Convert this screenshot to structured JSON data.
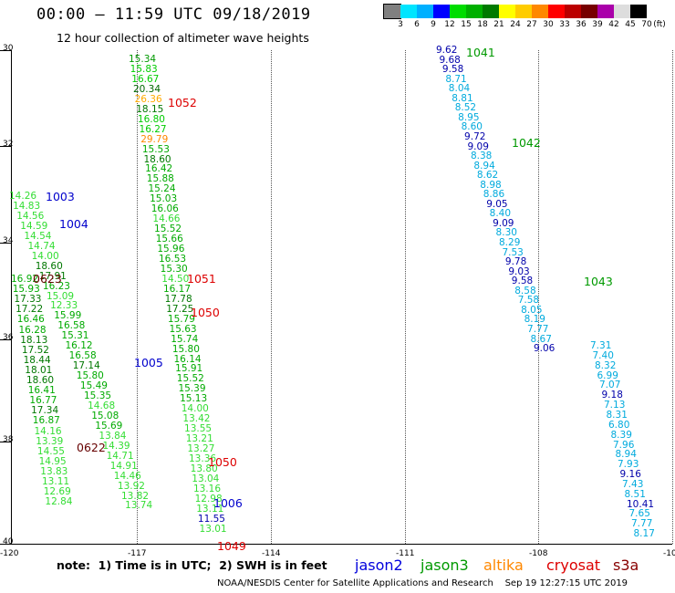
{
  "header": {
    "title": "00:00 – 11:59 UTC 09/18/2019",
    "subtitle": "12 hour collection of altimeter wave heights"
  },
  "colorbar": {
    "units": "(ft)",
    "cells": [
      {
        "color": "#808080",
        "label": "3"
      },
      {
        "color": "#00e5ff",
        "label": "6"
      },
      {
        "color": "#00b0ff",
        "label": "9"
      },
      {
        "color": "#0000ff",
        "label": "12"
      },
      {
        "color": "#00dd00",
        "label": "15"
      },
      {
        "color": "#00b000",
        "label": "18"
      },
      {
        "color": "#007a00",
        "label": "21"
      },
      {
        "color": "#ffff00",
        "label": "24"
      },
      {
        "color": "#ffcc00",
        "label": "27"
      },
      {
        "color": "#ff8800",
        "label": "30"
      },
      {
        "color": "#ff0000",
        "label": "33"
      },
      {
        "color": "#bb0000",
        "label": "36"
      },
      {
        "color": "#770000",
        "label": "39"
      },
      {
        "color": "#aa00aa",
        "label": "42"
      },
      {
        "color": "#dddddd",
        "label": "45"
      },
      {
        "color": "#000000",
        "label": "70"
      }
    ]
  },
  "axes": {
    "lat_labels": [
      "30",
      "32",
      "34",
      "36",
      "38",
      "40"
    ],
    "lon_labels": [
      "-120",
      "-117",
      "-114",
      "-111",
      "-108",
      "-105"
    ]
  },
  "passes": [
    {
      "label": "1041",
      "color": "#009900"
    },
    {
      "label": "1042",
      "color": "#009900"
    },
    {
      "label": "1043",
      "color": "#009900"
    },
    {
      "label": "1052",
      "color": "#dd0000"
    },
    {
      "label": "1051",
      "color": "#dd0000"
    },
    {
      "label": "1050",
      "color": "#dd0000"
    },
    {
      "label": "1050",
      "color": "#dd0000"
    },
    {
      "label": "1049",
      "color": "#dd0000"
    },
    {
      "label": "1003",
      "color": "#0000cc"
    },
    {
      "label": "1004",
      "color": "#0000cc"
    },
    {
      "label": "1005",
      "color": "#0000cc"
    },
    {
      "label": "1006",
      "color": "#0000cc"
    },
    {
      "label": "0623",
      "color": "#660000"
    },
    {
      "label": "0622",
      "color": "#660000"
    }
  ],
  "tracks": {
    "east_upper": [
      [
        "9.62",
        "#0000aa"
      ],
      [
        "9.68",
        "#0000aa"
      ],
      [
        "9.58",
        "#0000aa"
      ],
      [
        "8.71",
        "#00aadd"
      ],
      [
        "8.04",
        "#00aadd"
      ],
      [
        "8.81",
        "#00aadd"
      ],
      [
        "8.52",
        "#00aadd"
      ],
      [
        "8.95",
        "#00aadd"
      ],
      [
        "8.60",
        "#00aadd"
      ],
      [
        "9.72",
        "#0000aa"
      ],
      [
        "9.09",
        "#0000aa"
      ],
      [
        "8.38",
        "#00aadd"
      ],
      [
        "8.94",
        "#00aadd"
      ],
      [
        "8.62",
        "#00aadd"
      ],
      [
        "8.98",
        "#00aadd"
      ],
      [
        "8.86",
        "#00aadd"
      ],
      [
        "9.05",
        "#0000aa"
      ],
      [
        "8.40",
        "#00aadd"
      ],
      [
        "9.09",
        "#0000aa"
      ],
      [
        "8.30",
        "#00aadd"
      ],
      [
        "8.29",
        "#00aadd"
      ],
      [
        "7.53",
        "#00aadd"
      ],
      [
        "9.78",
        "#0000aa"
      ],
      [
        "9.03",
        "#0000aa"
      ],
      [
        "9.58",
        "#0000aa"
      ],
      [
        "8.58",
        "#00aadd"
      ],
      [
        "7.58",
        "#00aadd"
      ],
      [
        "8.05",
        "#00aadd"
      ],
      [
        "8.19",
        "#00aadd"
      ],
      [
        "7.77",
        "#00aadd"
      ],
      [
        "8.67",
        "#00aadd"
      ],
      [
        "9.06",
        "#0000aa"
      ]
    ],
    "east_lower": [
      [
        "7.31",
        "#00aadd"
      ],
      [
        "7.40",
        "#00aadd"
      ],
      [
        "8.32",
        "#00aadd"
      ],
      [
        "6.99",
        "#00aadd"
      ],
      [
        "7.07",
        "#00aadd"
      ],
      [
        "9.18",
        "#0000aa"
      ],
      [
        "7.13",
        "#00aadd"
      ],
      [
        "8.31",
        "#00aadd"
      ],
      [
        "6.80",
        "#00aadd"
      ],
      [
        "8.39",
        "#00aadd"
      ],
      [
        "7.96",
        "#00aadd"
      ],
      [
        "8.94",
        "#00aadd"
      ],
      [
        "7.93",
        "#00aadd"
      ],
      [
        "9.16",
        "#0000aa"
      ],
      [
        "7.43",
        "#00aadd"
      ],
      [
        "8.51",
        "#00aadd"
      ],
      [
        "10.41",
        "#0000aa"
      ],
      [
        "7.65",
        "#00aadd"
      ],
      [
        "7.77",
        "#00aadd"
      ],
      [
        "8.17",
        "#00aadd"
      ]
    ],
    "mid": [
      [
        "15.34",
        "#009900"
      ],
      [
        "15.83",
        "#00cc00"
      ],
      [
        "16.67",
        "#00cc00"
      ],
      [
        "20.34",
        "#006600"
      ],
      [
        "26.36",
        "#ffaa00"
      ],
      [
        "18.15",
        "#007700"
      ],
      [
        "16.80",
        "#00cc00"
      ],
      [
        "16.27",
        "#00cc00"
      ],
      [
        "29.79",
        "#ff8800"
      ],
      [
        "15.53",
        "#00aa00"
      ],
      [
        "18.60",
        "#007700"
      ],
      [
        "16.42",
        "#00aa00"
      ],
      [
        "15.88",
        "#00aa00"
      ],
      [
        "15.24",
        "#00aa00"
      ],
      [
        "15.03",
        "#00aa00"
      ],
      [
        "16.06",
        "#00aa00"
      ],
      [
        "14.66",
        "#33dd33"
      ],
      [
        "15.52",
        "#00aa00"
      ],
      [
        "15.66",
        "#00aa00"
      ],
      [
        "15.96",
        "#00aa00"
      ],
      [
        "16.53",
        "#00aa00"
      ],
      [
        "15.30",
        "#00aa00"
      ],
      [
        "14.50",
        "#33dd33"
      ],
      [
        "16.17",
        "#00aa00"
      ],
      [
        "17.78",
        "#007700"
      ],
      [
        "17.25",
        "#007700"
      ],
      [
        "15.79",
        "#00aa00"
      ],
      [
        "15.63",
        "#00aa00"
      ],
      [
        "15.74",
        "#00aa00"
      ],
      [
        "15.80",
        "#00aa00"
      ],
      [
        "16.14",
        "#00aa00"
      ],
      [
        "15.91",
        "#00aa00"
      ],
      [
        "15.52",
        "#00aa00"
      ],
      [
        "15.39",
        "#00aa00"
      ],
      [
        "15.13",
        "#00aa00"
      ],
      [
        "14.00",
        "#33dd33"
      ],
      [
        "13.42",
        "#33dd33"
      ],
      [
        "13.55",
        "#33dd33"
      ],
      [
        "13.21",
        "#33dd33"
      ],
      [
        "13.27",
        "#33dd33"
      ],
      [
        "13.36",
        "#33dd33"
      ],
      [
        "13.80",
        "#33dd33"
      ],
      [
        "13.04",
        "#33dd33"
      ],
      [
        "13.16",
        "#33dd33"
      ],
      [
        "12.98",
        "#33dd33"
      ],
      [
        "13.11",
        "#33dd33"
      ],
      [
        "11.55",
        "#0000aa"
      ],
      [
        "13.01",
        "#33dd33"
      ]
    ],
    "left_a": [
      [
        "14.26",
        "#33dd33"
      ],
      [
        "14.83",
        "#33dd33"
      ],
      [
        "14.56",
        "#33dd33"
      ],
      [
        "14.59",
        "#33dd33"
      ],
      [
        "14.54",
        "#33dd33"
      ],
      [
        "14.74",
        "#33dd33"
      ],
      [
        "14.00",
        "#33dd33"
      ],
      [
        "18.60",
        "#007700"
      ],
      [
        "17.91",
        "#007700"
      ],
      [
        "16.23",
        "#00aa00"
      ],
      [
        "15.09",
        "#33dd33"
      ],
      [
        "12.33",
        "#33dd33"
      ],
      [
        "15.99",
        "#00aa00"
      ],
      [
        "16.58",
        "#00aa00"
      ],
      [
        "15.31",
        "#00aa00"
      ],
      [
        "16.12",
        "#00aa00"
      ],
      [
        "16.58",
        "#00aa00"
      ],
      [
        "17.14",
        "#007700"
      ],
      [
        "15.80",
        "#00aa00"
      ],
      [
        "15.49",
        "#00aa00"
      ],
      [
        "15.35",
        "#00aa00"
      ],
      [
        "14.68",
        "#33dd33"
      ],
      [
        "15.08",
        "#00aa00"
      ],
      [
        "15.69",
        "#00aa00"
      ],
      [
        "13.84",
        "#33dd33"
      ],
      [
        "14.39",
        "#33dd33"
      ],
      [
        "14.71",
        "#33dd33"
      ],
      [
        "14.91",
        "#33dd33"
      ],
      [
        "14.46",
        "#33dd33"
      ],
      [
        "13.92",
        "#33dd33"
      ],
      [
        "13.82",
        "#33dd33"
      ],
      [
        "13.74",
        "#33dd33"
      ]
    ],
    "left_b": [
      [
        "16.92",
        "#00aa00"
      ],
      [
        "15.93",
        "#00aa00"
      ],
      [
        "17.33",
        "#007700"
      ],
      [
        "17.22",
        "#007700"
      ],
      [
        "16.46",
        "#00aa00"
      ],
      [
        "16.28",
        "#00aa00"
      ],
      [
        "18.13",
        "#007700"
      ],
      [
        "17.52",
        "#007700"
      ],
      [
        "18.44",
        "#007700"
      ],
      [
        "18.01",
        "#007700"
      ],
      [
        "18.60",
        "#007700"
      ],
      [
        "16.41",
        "#00aa00"
      ],
      [
        "16.77",
        "#00aa00"
      ],
      [
        "17.34",
        "#007700"
      ],
      [
        "16.87",
        "#00aa00"
      ],
      [
        "14.16",
        "#33dd33"
      ],
      [
        "13.39",
        "#33dd33"
      ],
      [
        "14.55",
        "#33dd33"
      ],
      [
        "14.95",
        "#33dd33"
      ],
      [
        "13.83",
        "#33dd33"
      ],
      [
        "13.11",
        "#33dd33"
      ],
      [
        "12.69",
        "#33dd33"
      ],
      [
        "12.84",
        "#33dd33"
      ]
    ]
  },
  "note": "note:  1) Time is in UTC;  2) SWH is in feet",
  "legend": [
    {
      "label": "jason2",
      "color": "#0000dd"
    },
    {
      "label": "jason3",
      "color": "#009900"
    },
    {
      "label": "altika",
      "color": "#ff8800"
    },
    {
      "label": "cryosat",
      "color": "#dd0000"
    },
    {
      "label": "s3a",
      "color": "#880000"
    }
  ],
  "footer": "NOAA/NESDIS Center for Satellite Applications and Research    Sep 19 12:27:15 UTC 2019"
}
